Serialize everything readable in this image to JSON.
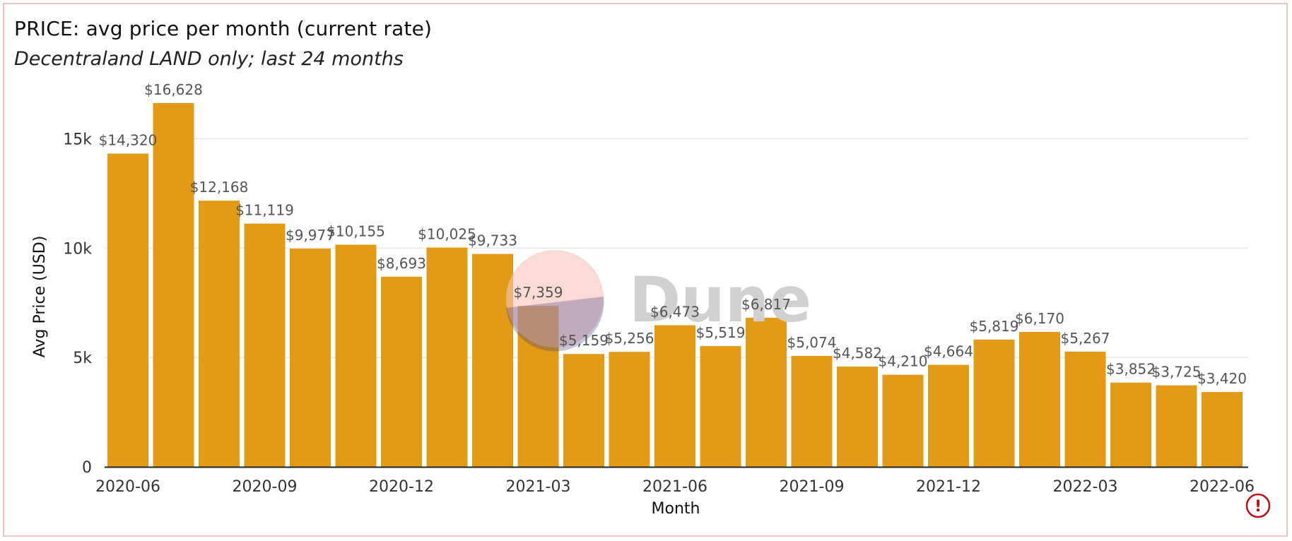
{
  "header": {
    "title": "PRICE: avg price per month (current rate)",
    "subtitle": "Decentraland LAND only; last 24 months"
  },
  "watermark": {
    "text": "Dune"
  },
  "warning_icon": {
    "glyph": "!",
    "color": "#b3121b"
  },
  "chart_data": {
    "type": "bar",
    "title": "PRICE: avg price per month (current rate)",
    "subtitle": "Decentraland LAND only; last 24 months",
    "xlabel": "Month",
    "ylabel": "Avg Price (USD)",
    "ylim": [
      0,
      16628
    ],
    "yticks": [
      0,
      5000,
      10000,
      15000
    ],
    "ytick_labels": [
      "0",
      "5k",
      "10k",
      "15k"
    ],
    "grid": true,
    "bar_color": "#e39b17",
    "categories": [
      "2020-06",
      "2020-07",
      "2020-08",
      "2020-09",
      "2020-10",
      "2020-11",
      "2020-12",
      "2021-01",
      "2021-02",
      "2021-03",
      "2021-04",
      "2021-05",
      "2021-06",
      "2021-07",
      "2021-08",
      "2021-09",
      "2021-10",
      "2021-11",
      "2021-12",
      "2022-01",
      "2022-02",
      "2022-03",
      "2022-04",
      "2022-05",
      "2022-06"
    ],
    "xtick_labels": [
      "2020-06",
      "2020-09",
      "2020-12",
      "2021-03",
      "2021-06",
      "2021-09",
      "2021-12",
      "2022-03",
      "2022-06"
    ],
    "values": [
      14320,
      16628,
      12168,
      11119,
      9977,
      10155,
      8693,
      10025,
      9733,
      7359,
      5159,
      5256,
      6473,
      5519,
      6817,
      5074,
      4582,
      4210,
      4664,
      5819,
      6170,
      5267,
      3852,
      3725,
      3420
    ],
    "data_labels": [
      "$14,320",
      "$16,628",
      "$12,168",
      "$11,119",
      "$9,977",
      "$10,155",
      "$8,693",
      "$10,025",
      "$9,733",
      "$7,359",
      "$5,159",
      "$5,256",
      "$6,473",
      "$5,519",
      "$6,817",
      "$5,074",
      "$4,582",
      "$4,210",
      "$4,664",
      "$5,819",
      "$6,170",
      "$5,267",
      "$3,852",
      "$3,725",
      "$3,420"
    ]
  }
}
